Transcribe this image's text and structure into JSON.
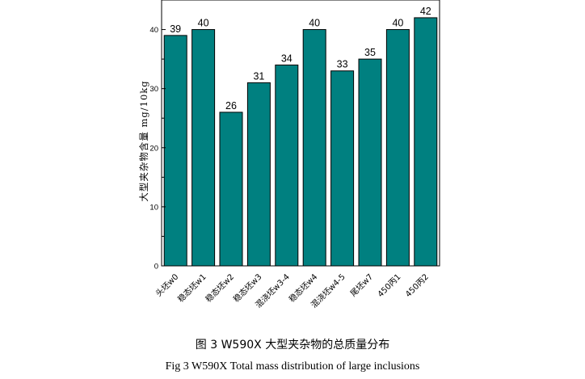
{
  "chart_data": {
    "type": "bar",
    "categories": [
      "头坯w0",
      "稳态坯w1",
      "稳态坯w2",
      "稳态坯w3",
      "混浇坯w3-4",
      "稳态坯w4",
      "混浇坯w4-5",
      "尾坯w7",
      "450丙1",
      "450丙2"
    ],
    "values": [
      39,
      40,
      26,
      31,
      34,
      40,
      33,
      35,
      40,
      42
    ],
    "data_labels": [
      "39",
      "40",
      "26",
      "31",
      "34",
      "40",
      "33",
      "35",
      "40",
      "42"
    ],
    "ylabel": "大型夹杂物含量  mg/10kg",
    "ylim": [
      0,
      45
    ],
    "yticks": [
      0,
      10,
      20,
      30,
      40
    ],
    "ytick_labels": [
      "0",
      "10",
      "20",
      "30",
      "40"
    ],
    "grid": false,
    "bar_color": "#008080",
    "bar_edge_color": "#000000"
  },
  "captions": {
    "zh": "图 3 W590X 大型夹杂物的总质量分布",
    "en": "Fig 3 W590X Total mass distribution of large inclusions"
  }
}
